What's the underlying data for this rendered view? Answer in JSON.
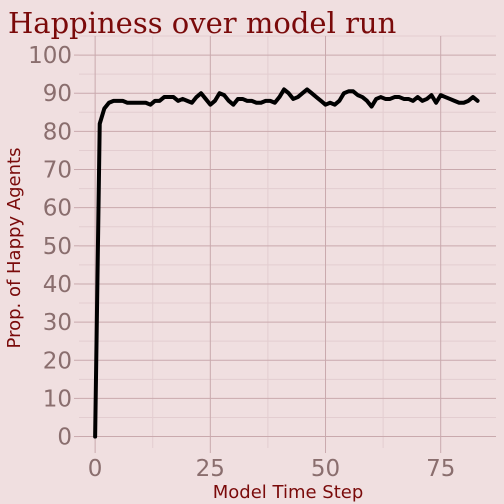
{
  "chart_data": {
    "type": "line",
    "title": "Happiness over model run",
    "xlabel": "Model Time Step",
    "ylabel": "Prop. of Happy Agents",
    "xlim": [
      -3.5,
      87
    ],
    "ylim": [
      -3,
      105
    ],
    "x_ticks": [
      0,
      25,
      50,
      75
    ],
    "y_ticks": [
      0,
      10,
      20,
      30,
      40,
      50,
      60,
      70,
      80,
      90,
      100
    ],
    "grid": true,
    "colors": {
      "background": "#f0dfe0",
      "line": "#000000",
      "title": "#7a0a0a",
      "tick": "#8a6e6e"
    },
    "series": [
      {
        "x": [
          0,
          1,
          2,
          3,
          4,
          5,
          6,
          7,
          8,
          9,
          10,
          11,
          12,
          13,
          14,
          15,
          16,
          17,
          18,
          19,
          20,
          21,
          22,
          23,
          24,
          25,
          26,
          27,
          28,
          29,
          30,
          31,
          32,
          33,
          34,
          35,
          36,
          37,
          38,
          39,
          40,
          41,
          42,
          43,
          44,
          45,
          46,
          47,
          48,
          49,
          50,
          51,
          52,
          53,
          54,
          55,
          56,
          57,
          58,
          59,
          60,
          61,
          62,
          63,
          64,
          65,
          66,
          67,
          68,
          69,
          70,
          71,
          72,
          73,
          74,
          75,
          76,
          77,
          78,
          79,
          80,
          81,
          82,
          83
        ],
        "values": [
          0,
          82,
          86,
          87.5,
          88,
          88,
          88,
          87.5,
          87.5,
          87.5,
          87.5,
          87.5,
          87,
          88,
          88,
          89,
          89,
          89,
          88,
          88.5,
          88,
          87.5,
          89,
          90,
          88.5,
          87,
          88,
          90,
          89.5,
          88,
          87,
          88.5,
          88.5,
          88,
          88,
          87.5,
          87.5,
          88,
          88,
          87.5,
          89,
          91,
          90,
          88.5,
          89,
          90,
          91,
          90,
          89,
          88,
          87,
          87.5,
          87,
          88,
          90,
          90.5,
          90.5,
          89.5,
          89,
          88,
          86.5,
          88.5,
          89,
          88.5,
          88.5,
          89,
          89,
          88.5,
          88.5,
          88,
          89,
          88,
          88.5,
          89.5,
          87.5,
          89.5,
          89,
          88.5,
          88,
          87.5,
          87.5,
          88,
          89,
          88
        ]
      }
    ]
  }
}
